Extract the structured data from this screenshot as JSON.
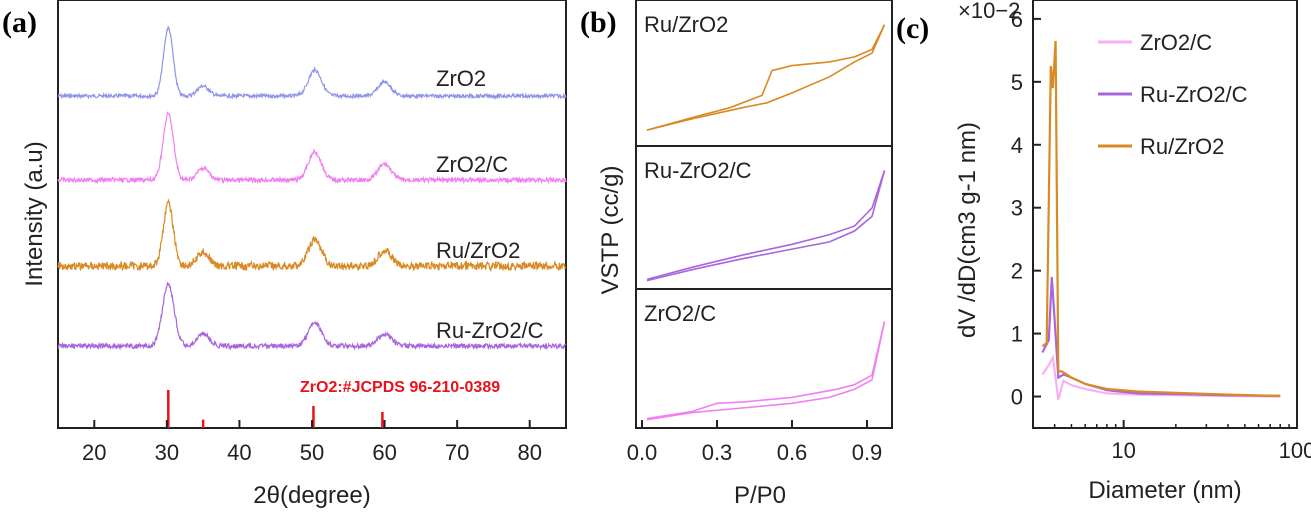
{
  "chart_data": [
    {
      "panel": "(a)",
      "type": "line",
      "xlabel": "2θ(degree)",
      "ylabel": "Intensity (a.u)",
      "xlim": [
        15,
        85
      ],
      "xticks": [
        "20",
        "30",
        "40",
        "50",
        "60",
        "70",
        "80"
      ],
      "series": [
        {
          "name": "ZrO2",
          "color": "#8f94e8",
          "baseline": 96,
          "noise": 1.8,
          "peaks": [
            [
              30.2,
              68,
              0.65
            ],
            [
              35.0,
              10,
              0.8
            ],
            [
              50.4,
              26,
              0.9
            ],
            [
              60.0,
              14,
              0.9
            ]
          ]
        },
        {
          "name": "ZrO2/C",
          "color": "#f27ef2",
          "baseline": 180,
          "noise": 2.2,
          "peaks": [
            [
              30.2,
              66,
              0.7
            ],
            [
              35.0,
              12,
              0.8
            ],
            [
              50.4,
              28,
              0.9
            ],
            [
              60.0,
              16,
              0.9
            ]
          ]
        },
        {
          "name": "Ru/ZrO2",
          "color": "#d88a24",
          "baseline": 266,
          "noise": 4.0,
          "peaks": [
            [
              30.2,
              62,
              0.7
            ],
            [
              35.0,
              14,
              0.8
            ],
            [
              50.4,
              26,
              0.9
            ],
            [
              60.0,
              16,
              0.9
            ]
          ]
        },
        {
          "name": "Ru-ZrO2/C",
          "color": "#a766dd",
          "baseline": 346,
          "noise": 2.4,
          "peaks": [
            [
              30.2,
              62,
              0.8
            ],
            [
              35.0,
              12,
              0.8
            ],
            [
              50.4,
              24,
              0.9
            ],
            [
              60.0,
              12,
              0.9
            ]
          ]
        }
      ],
      "reference": {
        "label": "ZrO2:#JCPDS 96-210-0389",
        "color": "#e8121b",
        "lines": [
          [
            30.2,
            1.0
          ],
          [
            35.0,
            0.22
          ],
          [
            50.2,
            0.58
          ],
          [
            59.7,
            0.42
          ]
        ]
      }
    },
    {
      "panel": "(b)",
      "type": "line",
      "xlabel": "P/P0",
      "ylabel": "VSTP (cc/g)",
      "xlim": [
        0.0,
        1.0
      ],
      "xticks": [
        "0.0",
        "0.3",
        "0.6",
        "0.9"
      ],
      "subplots": [
        {
          "name": "Ru/ZrO2",
          "color": "#d88a24",
          "ylim": [
            0,
            1
          ],
          "adsorption": [
            [
              0.02,
              0.08
            ],
            [
              0.2,
              0.17
            ],
            [
              0.4,
              0.26
            ],
            [
              0.5,
              0.3
            ],
            [
              0.6,
              0.38
            ],
            [
              0.75,
              0.51
            ],
            [
              0.85,
              0.63
            ],
            [
              0.92,
              0.7
            ],
            [
              0.97,
              0.93
            ]
          ],
          "desorption": [
            [
              0.97,
              0.93
            ],
            [
              0.92,
              0.73
            ],
            [
              0.85,
              0.67
            ],
            [
              0.75,
              0.63
            ],
            [
              0.6,
              0.6
            ],
            [
              0.52,
              0.56
            ],
            [
              0.48,
              0.36
            ],
            [
              0.35,
              0.26
            ],
            [
              0.2,
              0.18
            ],
            [
              0.02,
              0.08
            ]
          ]
        },
        {
          "name": "Ru-ZrO2/C",
          "color": "#a766dd",
          "ylim": [
            0,
            1
          ],
          "adsorption": [
            [
              0.02,
              0.02
            ],
            [
              0.2,
              0.11
            ],
            [
              0.4,
              0.2
            ],
            [
              0.6,
              0.28
            ],
            [
              0.75,
              0.34
            ],
            [
              0.85,
              0.43
            ],
            [
              0.92,
              0.55
            ],
            [
              0.97,
              0.93
            ]
          ],
          "desorption": [
            [
              0.97,
              0.93
            ],
            [
              0.92,
              0.62
            ],
            [
              0.85,
              0.47
            ],
            [
              0.75,
              0.4
            ],
            [
              0.6,
              0.32
            ],
            [
              0.4,
              0.23
            ],
            [
              0.2,
              0.13
            ],
            [
              0.02,
              0.03
            ]
          ]
        },
        {
          "name": "ZrO2/C",
          "color": "#f27ef2",
          "ylim": [
            0,
            1
          ],
          "adsorption": [
            [
              0.02,
              0.02
            ],
            [
              0.2,
              0.08
            ],
            [
              0.4,
              0.12
            ],
            [
              0.6,
              0.16
            ],
            [
              0.75,
              0.21
            ],
            [
              0.85,
              0.28
            ],
            [
              0.92,
              0.36
            ],
            [
              0.97,
              0.86
            ]
          ],
          "desorption": [
            [
              0.97,
              0.86
            ],
            [
              0.92,
              0.4
            ],
            [
              0.85,
              0.32
            ],
            [
              0.78,
              0.28
            ],
            [
              0.6,
              0.21
            ],
            [
              0.4,
              0.17
            ],
            [
              0.3,
              0.16
            ],
            [
              0.2,
              0.09
            ],
            [
              0.02,
              0.03
            ]
          ]
        }
      ]
    },
    {
      "panel": "(c)",
      "type": "line",
      "xlabel": "Diameter (nm)",
      "ylabel": "dV /dD(cm3 g-1 nm)",
      "xscale": "log",
      "xlim": [
        3,
        100
      ],
      "ylim": [
        -0.5,
        6.3
      ],
      "scale_label": "×10−2",
      "xticks": [
        "10",
        "100"
      ],
      "yticks": [
        "0",
        "1",
        "2",
        "3",
        "4",
        "5",
        "6"
      ],
      "legend_position": "top-right",
      "series": [
        {
          "name": "ZrO2/C",
          "color": "#f8b0f2",
          "x": [
            3.4,
            3.7,
            3.9,
            4.0,
            4.2,
            4.5,
            5.0,
            6,
            8,
            12,
            20,
            40,
            80
          ],
          "y": [
            0.35,
            0.5,
            0.62,
            0.4,
            -0.05,
            0.25,
            0.18,
            0.12,
            0.05,
            0.03,
            0.02,
            0.01,
            0.0
          ]
        },
        {
          "name": "Ru-ZrO2/C",
          "color": "#a766dd",
          "x": [
            3.4,
            3.7,
            3.85,
            4.0,
            4.2,
            4.5,
            5.0,
            6,
            8,
            12,
            20,
            40,
            80
          ],
          "y": [
            0.7,
            0.9,
            1.9,
            1.2,
            0.3,
            0.35,
            0.3,
            0.2,
            0.1,
            0.05,
            0.04,
            0.02,
            0.01
          ]
        },
        {
          "name": "Ru/ZrO2",
          "color": "#d88a24",
          "x": [
            3.4,
            3.6,
            3.8,
            3.9,
            4.05,
            4.2,
            4.4,
            5.0,
            6,
            8,
            12,
            20,
            40,
            80
          ],
          "y": [
            0.8,
            0.85,
            5.25,
            4.9,
            5.65,
            0.4,
            0.4,
            0.3,
            0.2,
            0.12,
            0.08,
            0.06,
            0.03,
            0.01
          ]
        }
      ]
    }
  ]
}
